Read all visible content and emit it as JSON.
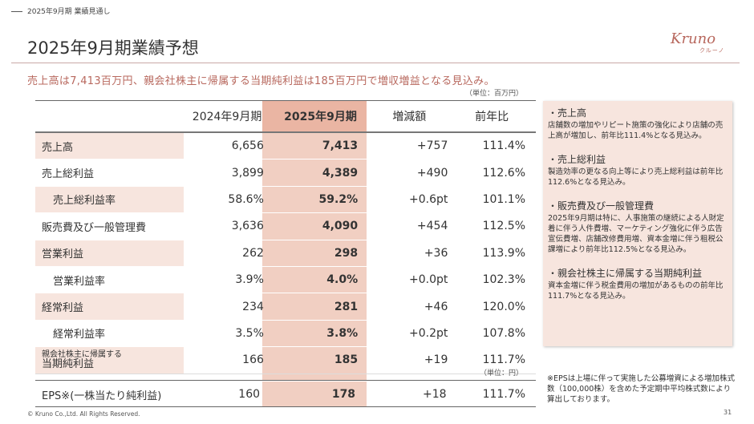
{
  "section_label": "2025年9月期 業績見通し",
  "page_title": "2025年9月期業績予想",
  "logo": {
    "main": "Kruno",
    "sub": "クルーノ"
  },
  "subtitle": "売上高は7,413百万円、親会社株主に帰属する当期純利益は185百万円で増収増益となる見込み。",
  "unit_top": "（単位：百万円）",
  "unit_eps": "（単位：円）",
  "headers": {
    "prev": "2024年9月期",
    "curr": "2025年9月期",
    "diff": "増減額",
    "yoy": "前年比"
  },
  "rows": [
    {
      "label": "売上高",
      "prev": "6,656",
      "curr": "7,413",
      "diff": "+757",
      "yoy": "111.4%"
    },
    {
      "label": "売上総利益",
      "prev": "3,899",
      "curr": "4,389",
      "diff": "+490",
      "yoy": "112.6%"
    },
    {
      "label": "売上総利益率",
      "prev": "58.6%",
      "curr": "59.2%",
      "diff": "+0.6pt",
      "yoy": "101.1%"
    },
    {
      "label": "販売費及び一般管理費",
      "prev": "3,636",
      "curr": "4,090",
      "diff": "+454",
      "yoy": "112.5%"
    },
    {
      "label": "営業利益",
      "prev": "262",
      "curr": "298",
      "diff": "+36",
      "yoy": "113.9%"
    },
    {
      "label": "営業利益率",
      "prev": "3.9%",
      "curr": "4.0%",
      "diff": "+0.0pt",
      "yoy": "102.3%"
    },
    {
      "label": "経常利益",
      "prev": "234",
      "curr": "281",
      "diff": "+46",
      "yoy": "120.0%"
    },
    {
      "label": "経常利益率",
      "prev": "3.5%",
      "curr": "3.8%",
      "diff": "+0.2pt",
      "yoy": "107.8%"
    },
    {
      "label_line1": "親会社株主に帰属する",
      "label_line2": "当期純利益",
      "prev": "166",
      "curr": "185",
      "diff": "+19",
      "yoy": "111.7%"
    }
  ],
  "eps": {
    "label": "EPS※(一株当たり純利益)",
    "prev": "160",
    "curr": "178",
    "diff": "+18",
    "yoy": "111.7%"
  },
  "notes": [
    {
      "heading": "・売上高",
      "body": "店舗数の増加やリピート施策の強化により店舗の売上高が増加し、前年比111.4%となる見込み。"
    },
    {
      "heading": "・売上総利益",
      "body": "製造効率の更なる向上等により売上総利益は前年比112.6%となる見込み。"
    },
    {
      "heading": "・販売費及び一般管理費",
      "body": "2025年9月期は特に、人事施策の継続による人財定着に伴う人件費増、マーケティング強化に伴う広告宣伝費増、店舗改修費用増、資本金増に伴う租税公課増により前年比112.5%となる見込み。"
    },
    {
      "heading": "・親会社株主に帰属する当期純利益",
      "body": "資本金増に伴う税金費用の増加があるものの前年比111.7%となる見込み。"
    }
  ],
  "eps_note": "※EPSは上場に伴って実施した公募増資による増加株式数（100,000株）を含めた予定期中平均株式数により算出しております。",
  "copyright": "© Kruno Co.,Ltd. All Rights Reserved.",
  "page_number": "31"
}
